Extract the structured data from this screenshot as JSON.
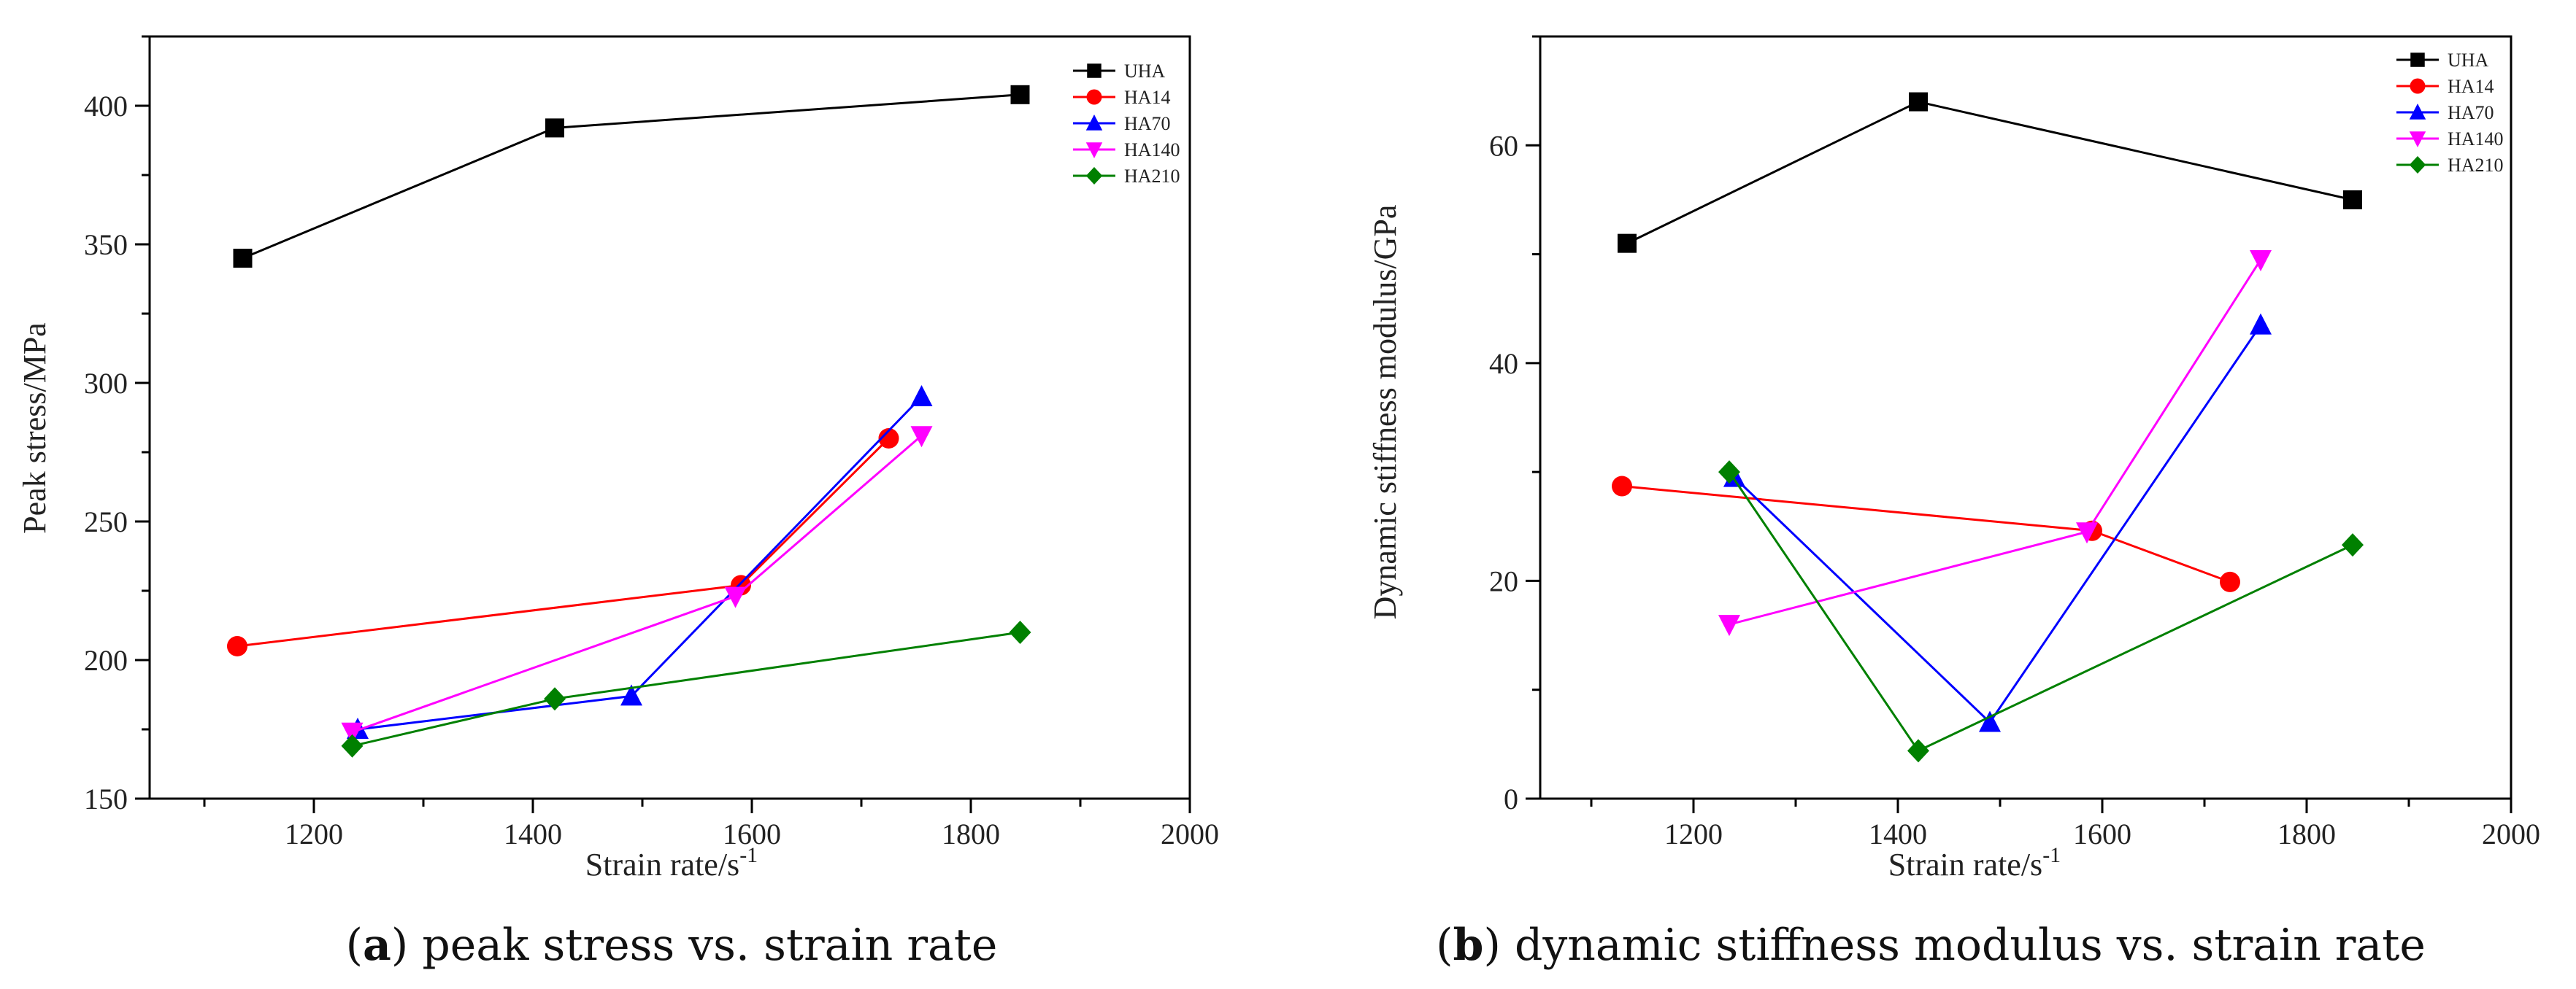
{
  "chart_data": [
    {
      "type": "line",
      "panel": "a",
      "caption_letter": "a",
      "caption_text": "peak stress vs. strain rate",
      "xlabel": "Strain rate/s",
      "xlabel_sup": "-1",
      "ylabel": "Peak stress/MPa",
      "xlim": [
        1050,
        2000
      ],
      "ylim": [
        150,
        425
      ],
      "xticks": [
        1200,
        1400,
        1600,
        1800,
        2000
      ],
      "yticks": [
        150,
        200,
        250,
        300,
        350,
        400
      ],
      "legend_position": "top-right",
      "series": [
        {
          "name": "UHA",
          "color": "#000000",
          "marker": "square",
          "x": [
            1135,
            1420,
            1845
          ],
          "y": [
            345,
            392,
            404
          ]
        },
        {
          "name": "HA14",
          "color": "#ff0000",
          "marker": "circle",
          "x": [
            1130,
            1590,
            1725
          ],
          "y": [
            205,
            227,
            280
          ]
        },
        {
          "name": "HA70",
          "color": "#0000ff",
          "marker": "triangle-up",
          "x": [
            1240,
            1490,
            1755
          ],
          "y": [
            175,
            187,
            295
          ]
        },
        {
          "name": "HA140",
          "color": "#ff00ff",
          "marker": "triangle-down",
          "x": [
            1235,
            1585,
            1755
          ],
          "y": [
            174,
            223,
            281
          ]
        },
        {
          "name": "HA210",
          "color": "#008000",
          "marker": "diamond",
          "x": [
            1235,
            1420,
            1845
          ],
          "y": [
            169,
            186,
            210
          ]
        }
      ]
    },
    {
      "type": "line",
      "panel": "b",
      "caption_letter": "b",
      "caption_text": "dynamic stiffness modulus vs. strain rate",
      "xlabel": "Strain rate/s",
      "xlabel_sup": "-1",
      "ylabel": "Dynamic stiffness modulus/GPa",
      "xlim": [
        1050,
        2000
      ],
      "ylim": [
        0,
        70
      ],
      "xticks": [
        1200,
        1400,
        1600,
        1800,
        2000
      ],
      "yticks": [
        0,
        20,
        40,
        60
      ],
      "legend_position": "top-right",
      "series": [
        {
          "name": "UHA",
          "color": "#000000",
          "marker": "square",
          "x": [
            1135,
            1420,
            1845
          ],
          "y": [
            51,
            64,
            55
          ]
        },
        {
          "name": "HA14",
          "color": "#ff0000",
          "marker": "circle",
          "x": [
            1130,
            1590,
            1725
          ],
          "y": [
            28.7,
            24.6,
            19.9
          ]
        },
        {
          "name": "HA70",
          "color": "#0000ff",
          "marker": "triangle-up",
          "x": [
            1240,
            1490,
            1755
          ],
          "y": [
            29.5,
            7,
            43.5
          ]
        },
        {
          "name": "HA140",
          "color": "#ff00ff",
          "marker": "triangle-down",
          "x": [
            1235,
            1585,
            1755
          ],
          "y": [
            16,
            24.5,
            49.5
          ]
        },
        {
          "name": "HA210",
          "color": "#008000",
          "marker": "diamond",
          "x": [
            1235,
            1420,
            1845
          ],
          "y": [
            30,
            4.4,
            23.3
          ]
        }
      ]
    }
  ]
}
